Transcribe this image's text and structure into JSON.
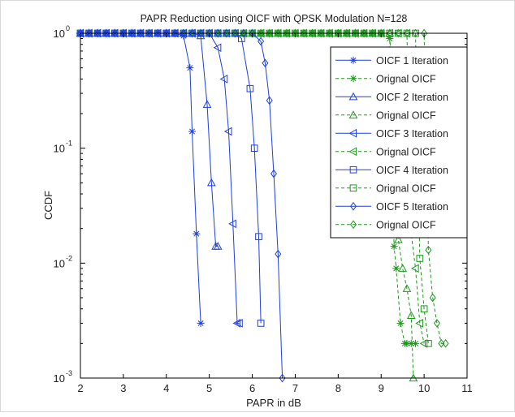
{
  "chart_data": {
    "type": "line",
    "title": "PAPR Reduction using OICF with QPSK Modulation N=128",
    "xlabel": "PAPR in dB",
    "ylabel": "CCDF",
    "x_scale": "linear",
    "y_scale": "log",
    "xlim": [
      2,
      11
    ],
    "ylim": [
      0.001,
      1
    ],
    "x_ticks": [
      "2",
      "3",
      "4",
      "5",
      "6",
      "7",
      "8",
      "9",
      "10",
      "11"
    ],
    "y_ticks": [
      {
        "base": "10",
        "exp": "0"
      },
      {
        "base": "10",
        "exp": "-1"
      },
      {
        "base": "10",
        "exp": "-2"
      },
      {
        "base": "10",
        "exp": "-3"
      }
    ],
    "grid": false,
    "legend_position": "top-right",
    "colors": {
      "oicf": "#1f3fe0",
      "original": "#1a9a1a"
    },
    "series": [
      {
        "name": "OICF 1 Iteration",
        "marker": "asterisk",
        "style": "solid",
        "color": "#1f3fe0",
        "x": [
          2.0,
          2.2,
          2.4,
          2.6,
          2.8,
          3.0,
          3.2,
          3.4,
          3.6,
          3.8,
          4.0,
          4.2,
          4.4,
          4.55,
          4.6,
          4.7,
          4.8
        ],
        "y": [
          1,
          1,
          1,
          1,
          1,
          1,
          1,
          1,
          1,
          1,
          1,
          1,
          0.95,
          0.5,
          0.14,
          0.018,
          0.003
        ]
      },
      {
        "name": "Orignal OICF",
        "marker": "asterisk",
        "style": "dashed",
        "color": "#1a9a1a",
        "x": [
          2.0,
          2.2,
          2.4,
          2.6,
          2.8,
          3.0,
          3.2,
          3.4,
          3.6,
          3.8,
          4.0,
          4.2,
          4.4,
          4.6,
          4.8,
          5.0,
          5.2,
          5.4,
          5.6,
          5.8,
          6.0,
          6.2,
          6.4,
          6.6,
          6.8,
          7.0,
          7.2,
          7.4,
          7.6,
          7.8,
          8.0,
          8.2,
          8.4,
          8.6,
          8.8,
          9.0,
          9.2,
          9.3,
          9.35,
          9.45,
          9.55,
          9.6,
          9.7,
          9.8
        ],
        "y": [
          1,
          1,
          1,
          1,
          1,
          1,
          1,
          1,
          1,
          1,
          1,
          1,
          1,
          1,
          1,
          1,
          1,
          1,
          1,
          1,
          1,
          1,
          1,
          1,
          1,
          1,
          1,
          1,
          1,
          1,
          1,
          1,
          1,
          1,
          1,
          1,
          0.9,
          0.014,
          0.009,
          0.003,
          0.002,
          0.002,
          0.002,
          0.002
        ]
      },
      {
        "name": "OICF 2 Iteration",
        "marker": "triangle-up",
        "style": "solid",
        "color": "#1f3fe0",
        "x": [
          2.0,
          2.2,
          2.4,
          2.6,
          2.8,
          3.0,
          3.2,
          3.4,
          3.6,
          3.8,
          4.0,
          4.2,
          4.4,
          4.6,
          4.8,
          4.95,
          5.05,
          5.15,
          5.2
        ],
        "y": [
          1,
          1,
          1,
          1,
          1,
          1,
          1,
          1,
          1,
          1,
          1,
          1,
          1,
          1,
          0.95,
          0.24,
          0.05,
          0.014,
          0.014
        ]
      },
      {
        "name": "Orignal OICF",
        "marker": "triangle-up",
        "style": "dashed",
        "color": "#1a9a1a",
        "x": [
          2.0,
          2.2,
          2.4,
          2.6,
          2.8,
          3.0,
          3.2,
          3.4,
          3.6,
          3.8,
          4.0,
          4.2,
          4.4,
          4.6,
          4.8,
          5.0,
          5.2,
          5.4,
          5.6,
          5.8,
          6.0,
          6.2,
          6.4,
          6.6,
          6.8,
          7.0,
          7.2,
          7.4,
          7.6,
          7.8,
          8.0,
          8.2,
          8.4,
          8.6,
          8.8,
          9.0,
          9.2,
          9.4,
          9.5,
          9.6,
          9.7,
          9.75
        ],
        "y": [
          1,
          1,
          1,
          1,
          1,
          1,
          1,
          1,
          1,
          1,
          1,
          1,
          1,
          1,
          1,
          1,
          1,
          1,
          1,
          1,
          1,
          1,
          1,
          1,
          1,
          1,
          1,
          1,
          1,
          1,
          1,
          1,
          1,
          1,
          1,
          1,
          1,
          0.016,
          0.009,
          0.006,
          0.0035,
          0.001
        ]
      },
      {
        "name": "OICF 3 Iteration",
        "marker": "triangle-left",
        "style": "solid",
        "color": "#1f3fe0",
        "x": [
          2.0,
          2.2,
          2.4,
          2.6,
          2.8,
          3.0,
          3.2,
          3.4,
          3.6,
          3.8,
          4.0,
          4.2,
          4.4,
          4.6,
          4.8,
          5.0,
          5.2,
          5.35,
          5.45,
          5.55,
          5.65,
          5.7
        ],
        "y": [
          1,
          1,
          1,
          1,
          1,
          1,
          1,
          1,
          1,
          1,
          1,
          1,
          1,
          1,
          1,
          1,
          0.75,
          0.4,
          0.14,
          0.022,
          0.003,
          0.003
        ]
      },
      {
        "name": "Orignal OICF",
        "marker": "triangle-left",
        "style": "dashed",
        "color": "#1a9a1a",
        "x": [
          2.0,
          2.2,
          2.4,
          2.6,
          2.8,
          3.0,
          3.2,
          3.4,
          3.6,
          3.8,
          4.0,
          4.2,
          4.4,
          4.6,
          4.8,
          5.0,
          5.2,
          5.4,
          5.6,
          5.8,
          6.0,
          6.2,
          6.4,
          6.6,
          6.8,
          7.0,
          7.2,
          7.4,
          7.6,
          7.8,
          8.0,
          8.2,
          8.4,
          8.6,
          8.8,
          9.0,
          9.2,
          9.4,
          9.6,
          9.7,
          9.8,
          9.9,
          10.0
        ],
        "y": [
          1,
          1,
          1,
          1,
          1,
          1,
          1,
          1,
          1,
          1,
          1,
          1,
          1,
          1,
          1,
          1,
          1,
          1,
          1,
          1,
          1,
          1,
          1,
          1,
          1,
          1,
          1,
          1,
          1,
          1,
          1,
          1,
          1,
          1,
          1,
          1,
          1,
          1,
          1,
          0.018,
          0.009,
          0.003,
          0.002
        ]
      },
      {
        "name": "OICF 4 Iteration",
        "marker": "square",
        "style": "solid",
        "color": "#1f3fe0",
        "x": [
          2.0,
          2.2,
          2.4,
          2.6,
          2.8,
          3.0,
          3.2,
          3.4,
          3.6,
          3.8,
          4.0,
          4.2,
          4.4,
          4.6,
          4.8,
          5.0,
          5.2,
          5.4,
          5.6,
          5.75,
          5.95,
          6.05,
          6.15,
          6.2
        ],
        "y": [
          1,
          1,
          1,
          1,
          1,
          1,
          1,
          1,
          1,
          1,
          1,
          1,
          1,
          1,
          1,
          1,
          1,
          1,
          1,
          0.9,
          0.33,
          0.1,
          0.017,
          0.003
        ]
      },
      {
        "name": "Orignal OICF",
        "marker": "square",
        "style": "dashed",
        "color": "#1a9a1a",
        "x": [
          2.0,
          2.2,
          2.4,
          2.6,
          2.8,
          3.0,
          3.2,
          3.4,
          3.6,
          3.8,
          4.0,
          4.2,
          4.4,
          4.6,
          4.8,
          5.0,
          5.2,
          5.4,
          5.6,
          5.8,
          6.0,
          6.2,
          6.4,
          6.6,
          6.8,
          7.0,
          7.2,
          7.4,
          7.6,
          7.8,
          8.0,
          8.2,
          8.4,
          8.6,
          8.8,
          9.0,
          9.2,
          9.4,
          9.6,
          9.8,
          9.9,
          10.0,
          10.1
        ],
        "y": [
          1,
          1,
          1,
          1,
          1,
          1,
          1,
          1,
          1,
          1,
          1,
          1,
          1,
          1,
          1,
          1,
          1,
          1,
          1,
          1,
          1,
          1,
          1,
          1,
          1,
          1,
          1,
          1,
          1,
          1,
          1,
          1,
          1,
          1,
          1,
          1,
          1,
          1,
          1,
          1,
          0.011,
          0.004,
          0.002
        ]
      },
      {
        "name": "OICF 5 Iteration",
        "marker": "diamond",
        "style": "solid",
        "color": "#1f3fe0",
        "x": [
          2.0,
          2.2,
          2.4,
          2.6,
          2.8,
          3.0,
          3.2,
          3.4,
          3.6,
          3.8,
          4.0,
          4.2,
          4.4,
          4.6,
          4.8,
          5.0,
          5.2,
          5.4,
          5.6,
          5.8,
          6.0,
          6.2,
          6.3,
          6.4,
          6.5,
          6.6,
          6.7
        ],
        "y": [
          1,
          1,
          1,
          1,
          1,
          1,
          1,
          1,
          1,
          1,
          1,
          1,
          1,
          1,
          1,
          1,
          1,
          1,
          1,
          1,
          1,
          0.85,
          0.55,
          0.26,
          0.06,
          0.012,
          0.001
        ]
      },
      {
        "name": "Orignal OICF",
        "marker": "diamond",
        "style": "dashed",
        "color": "#1a9a1a",
        "x": [
          2.0,
          2.2,
          2.4,
          2.6,
          2.8,
          3.0,
          3.2,
          3.4,
          3.6,
          3.8,
          4.0,
          4.2,
          4.4,
          4.6,
          4.8,
          5.0,
          5.2,
          5.4,
          5.6,
          5.8,
          6.0,
          6.2,
          6.4,
          6.6,
          6.8,
          7.0,
          7.2,
          7.4,
          7.6,
          7.8,
          8.0,
          8.2,
          8.4,
          8.6,
          8.8,
          9.0,
          9.2,
          9.4,
          9.6,
          9.8,
          10.0,
          10.1,
          10.2,
          10.3,
          10.4,
          10.5
        ],
        "y": [
          1,
          1,
          1,
          1,
          1,
          1,
          1,
          1,
          1,
          1,
          1,
          1,
          1,
          1,
          1,
          1,
          1,
          1,
          1,
          1,
          1,
          1,
          1,
          1,
          1,
          1,
          1,
          1,
          1,
          1,
          1,
          1,
          1,
          1,
          1,
          1,
          1,
          1,
          1,
          1,
          1,
          0.013,
          0.005,
          0.003,
          0.002,
          0.002
        ]
      }
    ]
  }
}
